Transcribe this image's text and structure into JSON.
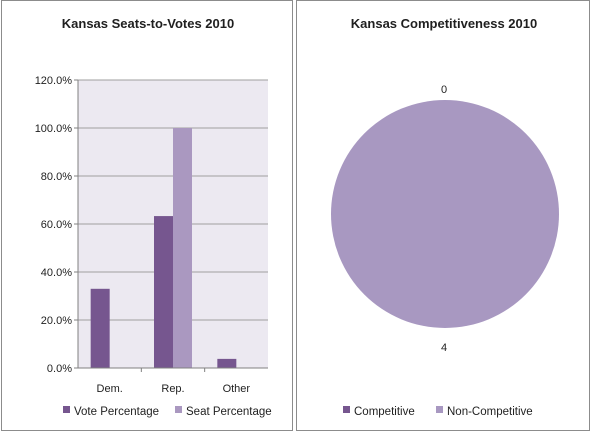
{
  "colors": {
    "vote": "#76568f",
    "seat": "#aa98c0",
    "plot_bg": "#ece9f1",
    "grid": "#9f9f9f",
    "competitive": "#76568f",
    "non_competitive": "#a898c1"
  },
  "chart_data": [
    {
      "type": "bar",
      "title": "Kansas Seats-to-Votes 2010",
      "categories": [
        "Dem.",
        "Rep.",
        "Other"
      ],
      "series": [
        {
          "name": "Vote Percentage",
          "values": [
            33.0,
            63.3,
            3.8
          ]
        },
        {
          "name": "Seat Percentage",
          "values": [
            0,
            100.0,
            0
          ]
        }
      ],
      "ylim": [
        0,
        120
      ],
      "yticks": [
        "0.0%",
        "20.0%",
        "40.0%",
        "60.0%",
        "80.0%",
        "100.0%",
        "120.0%"
      ],
      "grid": true,
      "legend": "bottom"
    },
    {
      "type": "pie",
      "title": "Kansas Competitiveness 2010",
      "labels": [
        "Competitive",
        "Non-Competitive"
      ],
      "values": [
        0,
        4
      ],
      "data_labels": [
        "0",
        "4"
      ],
      "legend": "bottom"
    }
  ]
}
